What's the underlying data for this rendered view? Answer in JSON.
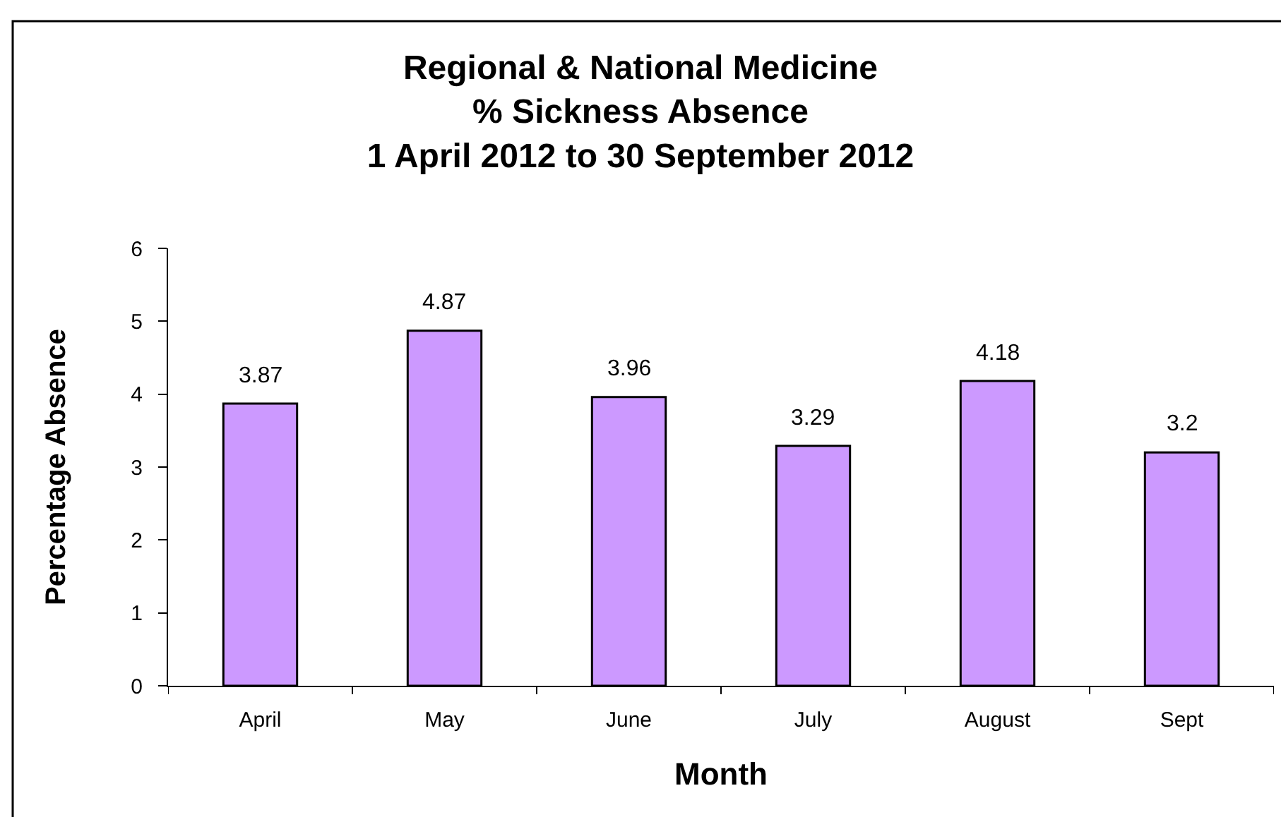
{
  "chart_data": {
    "type": "bar",
    "title": "Regional & National Medicine\n% Sickness Absence\n1 April 2012 to 30 September 2012",
    "xlabel": "Month",
    "ylabel": "Percentage Absence",
    "categories": [
      "April",
      "May",
      "June",
      "July",
      "August",
      "Sept"
    ],
    "values": [
      3.87,
      4.87,
      3.96,
      3.29,
      4.18,
      3.2
    ],
    "color": "#cc99ff",
    "ylim": [
      0,
      6
    ],
    "yticks": [
      0,
      1,
      2,
      3,
      4,
      5,
      6
    ],
    "data_labels": true
  }
}
